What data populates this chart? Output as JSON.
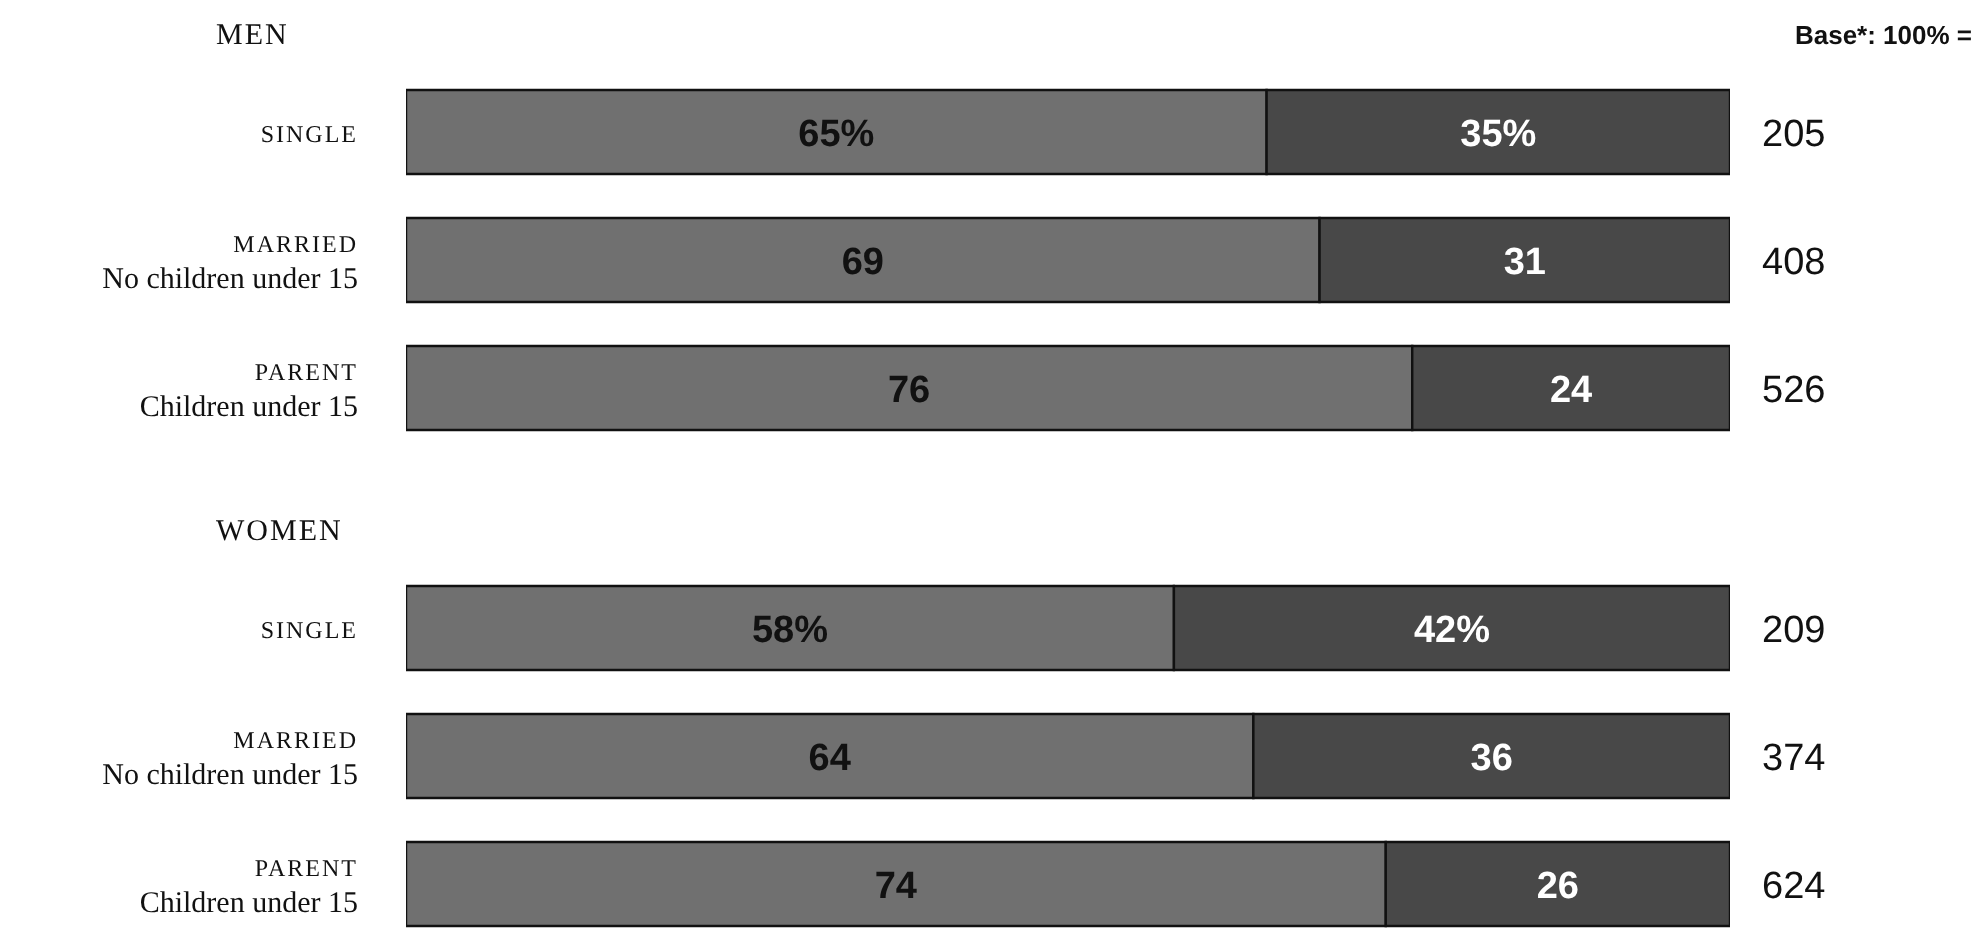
{
  "chart_data": [
    {
      "type": "bar",
      "orientation": "horizontal",
      "stacked": true,
      "title": "MEN",
      "annotations": [
        "Base*: 100% =",
        "205",
        "408",
        "526"
      ],
      "categories": [
        "SINGLE",
        "MARRIED\nNo children under 15",
        "PARENT\nChildren under 15"
      ],
      "xlim": [
        0,
        100
      ],
      "tick_labels": "y",
      "series": [
        {
          "color": "#707070",
          "values": [
            65,
            69,
            76
          ],
          "value_labels": [
            "65%",
            "69",
            "76"
          ]
        },
        {
          "color": "#484848",
          "values": [
            35,
            31,
            24
          ],
          "value_labels": [
            "35%",
            "31",
            "24"
          ]
        }
      ]
    },
    {
      "type": "bar",
      "orientation": "horizontal",
      "stacked": true,
      "title": "WOMEN",
      "annotations": [
        "209",
        "374",
        "624"
      ],
      "categories": [
        "SINGLE",
        "MARRIED\nNo children under 15",
        "PARENT\nChildren under 15"
      ],
      "xlim": [
        0,
        100
      ],
      "tick_labels": "y",
      "series": [
        {
          "color": "#707070",
          "values": [
            58,
            64,
            74
          ],
          "value_labels": [
            "58%",
            "64",
            "74"
          ]
        },
        {
          "color": "#484848",
          "values": [
            42,
            36,
            26
          ],
          "value_labels": [
            "42%",
            "36",
            "26"
          ]
        }
      ]
    }
  ]
}
